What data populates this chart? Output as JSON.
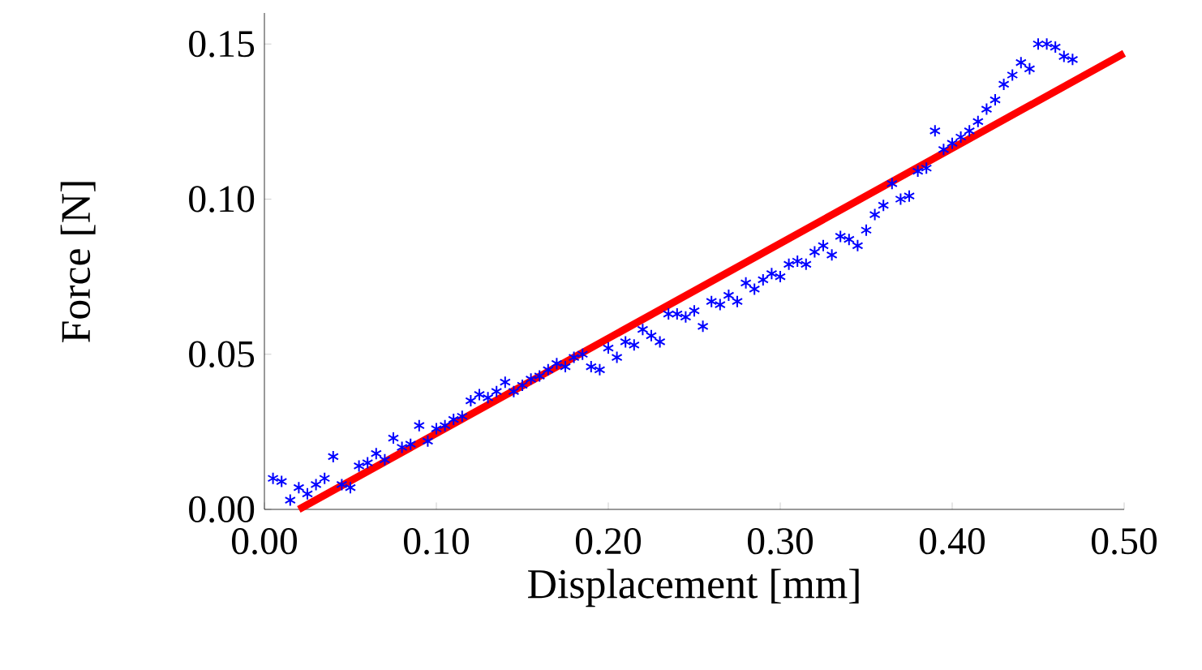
{
  "chart_data": {
    "type": "scatter",
    "xlabel": "Displacement [mm]",
    "ylabel": "Force [N]",
    "xlim": [
      0,
      0.5
    ],
    "ylim": [
      0,
      0.16
    ],
    "xticks": [
      {
        "value": 0,
        "label": "0.00"
      },
      {
        "value": 0.1,
        "label": "0.10"
      },
      {
        "value": 0.2,
        "label": "0.20"
      },
      {
        "value": 0.3,
        "label": "0.30"
      },
      {
        "value": 0.4,
        "label": "0.40"
      },
      {
        "value": 0.5,
        "label": "0.50"
      }
    ],
    "yticks": [
      {
        "value": 0,
        "label": "0.00"
      },
      {
        "value": 0.05,
        "label": "0.05"
      },
      {
        "value": 0.1,
        "label": "0.10"
      },
      {
        "value": 0.15,
        "label": "0.15"
      }
    ],
    "grid": false,
    "series": [
      {
        "color": "#0000ff",
        "marker": "cross",
        "x": [
          0.005,
          0.01,
          0.015,
          0.02,
          0.025,
          0.03,
          0.035,
          0.04,
          0.045,
          0.05,
          0.055,
          0.06,
          0.065,
          0.07,
          0.075,
          0.08,
          0.085,
          0.09,
          0.095,
          0.1,
          0.105,
          0.11,
          0.115,
          0.12,
          0.125,
          0.13,
          0.135,
          0.14,
          0.145,
          0.15,
          0.155,
          0.16,
          0.165,
          0.17,
          0.175,
          0.18,
          0.185,
          0.19,
          0.195,
          0.2,
          0.205,
          0.21,
          0.215,
          0.22,
          0.225,
          0.23,
          0.235,
          0.24,
          0.245,
          0.25,
          0.255,
          0.26,
          0.265,
          0.27,
          0.275,
          0.28,
          0.285,
          0.29,
          0.295,
          0.3,
          0.305,
          0.31,
          0.315,
          0.32,
          0.325,
          0.33,
          0.335,
          0.34,
          0.345,
          0.35,
          0.355,
          0.36,
          0.365,
          0.37,
          0.375,
          0.38,
          0.385,
          0.39,
          0.395,
          0.4,
          0.405,
          0.41,
          0.415,
          0.42,
          0.425,
          0.43,
          0.435,
          0.44,
          0.445,
          0.45,
          0.455,
          0.46,
          0.465,
          0.47
        ],
        "values": [
          0.01,
          0.009,
          0.003,
          0.007,
          0.005,
          0.008,
          0.01,
          0.017,
          0.008,
          0.007,
          0.014,
          0.015,
          0.018,
          0.016,
          0.023,
          0.02,
          0.021,
          0.027,
          0.022,
          0.026,
          0.027,
          0.029,
          0.03,
          0.035,
          0.037,
          0.036,
          0.038,
          0.041,
          0.038,
          0.04,
          0.042,
          0.043,
          0.045,
          0.047,
          0.046,
          0.049,
          0.05,
          0.046,
          0.045,
          0.052,
          0.049,
          0.054,
          0.053,
          0.058,
          0.056,
          0.054,
          0.063,
          0.063,
          0.062,
          0.064,
          0.059,
          0.067,
          0.066,
          0.069,
          0.067,
          0.073,
          0.071,
          0.074,
          0.076,
          0.075,
          0.079,
          0.08,
          0.079,
          0.083,
          0.085,
          0.082,
          0.088,
          0.087,
          0.085,
          0.09,
          0.095,
          0.098,
          0.105,
          0.1,
          0.101,
          0.109,
          0.11,
          0.122,
          0.116,
          0.118,
          0.12,
          0.122,
          0.125,
          0.129,
          0.132,
          0.137,
          0.14,
          0.144,
          0.142,
          0.15,
          0.15,
          0.149,
          0.146,
          0.145
        ]
      },
      {
        "type": "line",
        "color": "#ff0000",
        "marker": "none",
        "line_style": "solid",
        "x": [
          0.02,
          0.5
        ],
        "values": [
          0.0,
          0.147
        ]
      }
    ]
  }
}
